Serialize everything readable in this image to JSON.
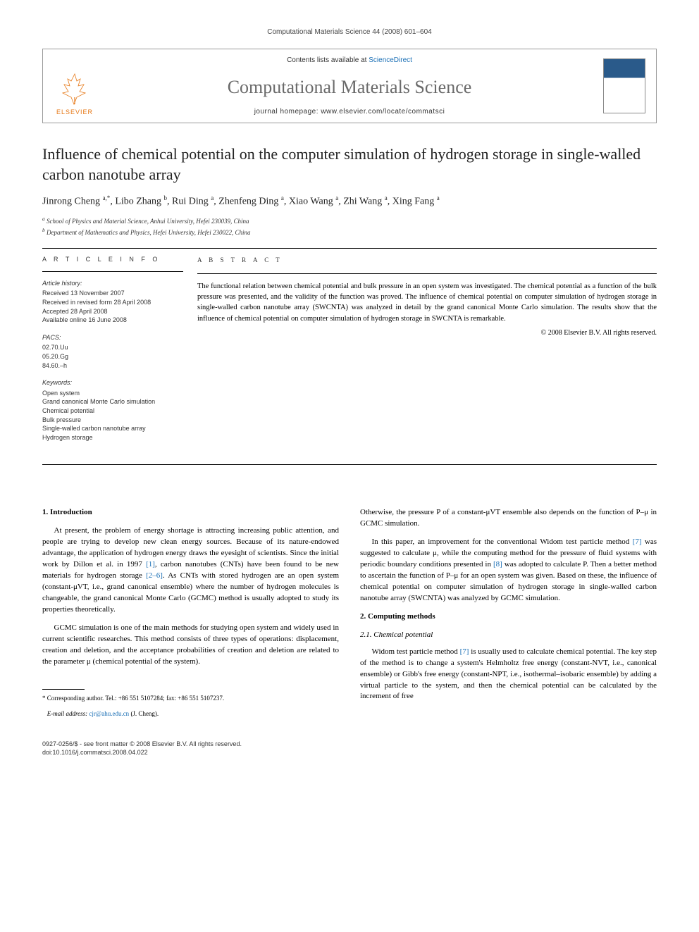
{
  "running_head": "Computational Materials Science 44 (2008) 601–604",
  "header": {
    "contents_prefix": "Contents lists available at ",
    "contents_link": "ScienceDirect",
    "journal": "Computational Materials Science",
    "homepage_prefix": "journal homepage: ",
    "homepage_url": "www.elsevier.com/locate/commatsci",
    "publisher": "ELSEVIER"
  },
  "title": "Influence of chemical potential on the computer simulation of hydrogen storage in single-walled carbon nanotube array",
  "authors_html": "Jinrong Cheng <sup>a,*</sup>, Libo Zhang <sup>b</sup>, Rui Ding <sup>a</sup>, Zhenfeng Ding <sup>a</sup>, Xiao Wang <sup>a</sup>, Zhi Wang <sup>a</sup>, Xing Fang <sup>a</sup>",
  "affiliations": [
    "a School of Physics and Material Science, Anhui University, Hefei 230039, China",
    "b Department of Mathematics and Physics, Hefei University, Hefei 230022, China"
  ],
  "info": {
    "heading": "A R T I C L E   I N F O",
    "history_label": "Article history:",
    "history": [
      "Received 13 November 2007",
      "Received in revised form 28 April 2008",
      "Accepted 28 April 2008",
      "Available online 16 June 2008"
    ],
    "pacs_label": "PACS:",
    "pacs": [
      "02.70.Uu",
      "05.20.Gg",
      "84.60.–h"
    ],
    "keywords_label": "Keywords:",
    "keywords": [
      "Open system",
      "Grand canonical Monte Carlo simulation",
      "Chemical potential",
      "Bulk pressure",
      "Single-walled carbon nanotube array",
      "Hydrogen storage"
    ]
  },
  "abstract": {
    "heading": "A B S T R A C T",
    "text": "The functional relation between chemical potential and bulk pressure in an open system was investigated. The chemical potential as a function of the bulk pressure was presented, and the validity of the function was proved. The influence of chemical potential on computer simulation of hydrogen storage in single-walled carbon nanotube array (SWCNTA) was analyzed in detail by the grand canonical Monte Carlo simulation. The results show that the influence of chemical potential on computer simulation of hydrogen storage in SWCNTA is remarkable.",
    "copyright": "© 2008 Elsevier B.V. All rights reserved."
  },
  "sections": {
    "s1_title": "1. Introduction",
    "s1_p1": "At present, the problem of energy shortage is attracting increasing public attention, and people are trying to develop new clean energy sources. Because of its nature-endowed advantage, the application of hydrogen energy draws the eyesight of scientists. Since the initial work by Dillon et al. in 1997 [1], carbon nanotubes (CNTs) have been found to be new materials for hydrogen storage [2–6]. As CNTs with stored hydrogen are an open system (constant-μVT, i.e., grand canonical ensemble) where the number of hydrogen molecules is changeable, the grand canonical Monte Carlo (GCMC) method is usually adopted to study its properties theoretically.",
    "s1_p2": "GCMC simulation is one of the main methods for studying open system and widely used in current scientific researches. This method consists of three types of operations: displacement, creation and deletion, and the acceptance probabilities of creation and deletion are related to the parameter μ (chemical potential of the system).",
    "s1_p3": "Otherwise, the pressure P of a constant-μVT ensemble also depends on the function of P–μ in GCMC simulation.",
    "s1_p4": "In this paper, an improvement for the conventional Widom test particle method [7] was suggested to calculate μ, while the computing method for the pressure of fluid systems with periodic boundary conditions presented in [8] was adopted to calculate P. Then a better method to ascertain the function of P–μ for an open system was given. Based on these, the influence of chemical potential on computer simulation of hydrogen storage in single-walled carbon nanotube array (SWCNTA) was analyzed by GCMC simulation.",
    "s2_title": "2. Computing methods",
    "s21_title": "2.1. Chemical potential",
    "s21_p1": "Widom test particle method [7] is usually used to calculate chemical potential. The key step of the method is to change a system's Helmholtz free energy (constant-NVT, i.e., canonical ensemble) or Gibb's free energy (constant-NPT, i.e., isothermal–isobaric ensemble) by adding a virtual particle to the system, and then the chemical potential can be calculated by the increment of free"
  },
  "footnote": {
    "corr": "* Corresponding author. Tel.: +86 551 5107284; fax: +86 551 5107237.",
    "email_label": "E-mail address: ",
    "email": "cjr@ahu.edu.cn",
    "email_suffix": " (J. Cheng)."
  },
  "bottom": {
    "line1": "0927-0256/$ - see front matter © 2008 Elsevier B.V. All rights reserved.",
    "line2": "doi:10.1016/j.commatsci.2008.04.022"
  }
}
